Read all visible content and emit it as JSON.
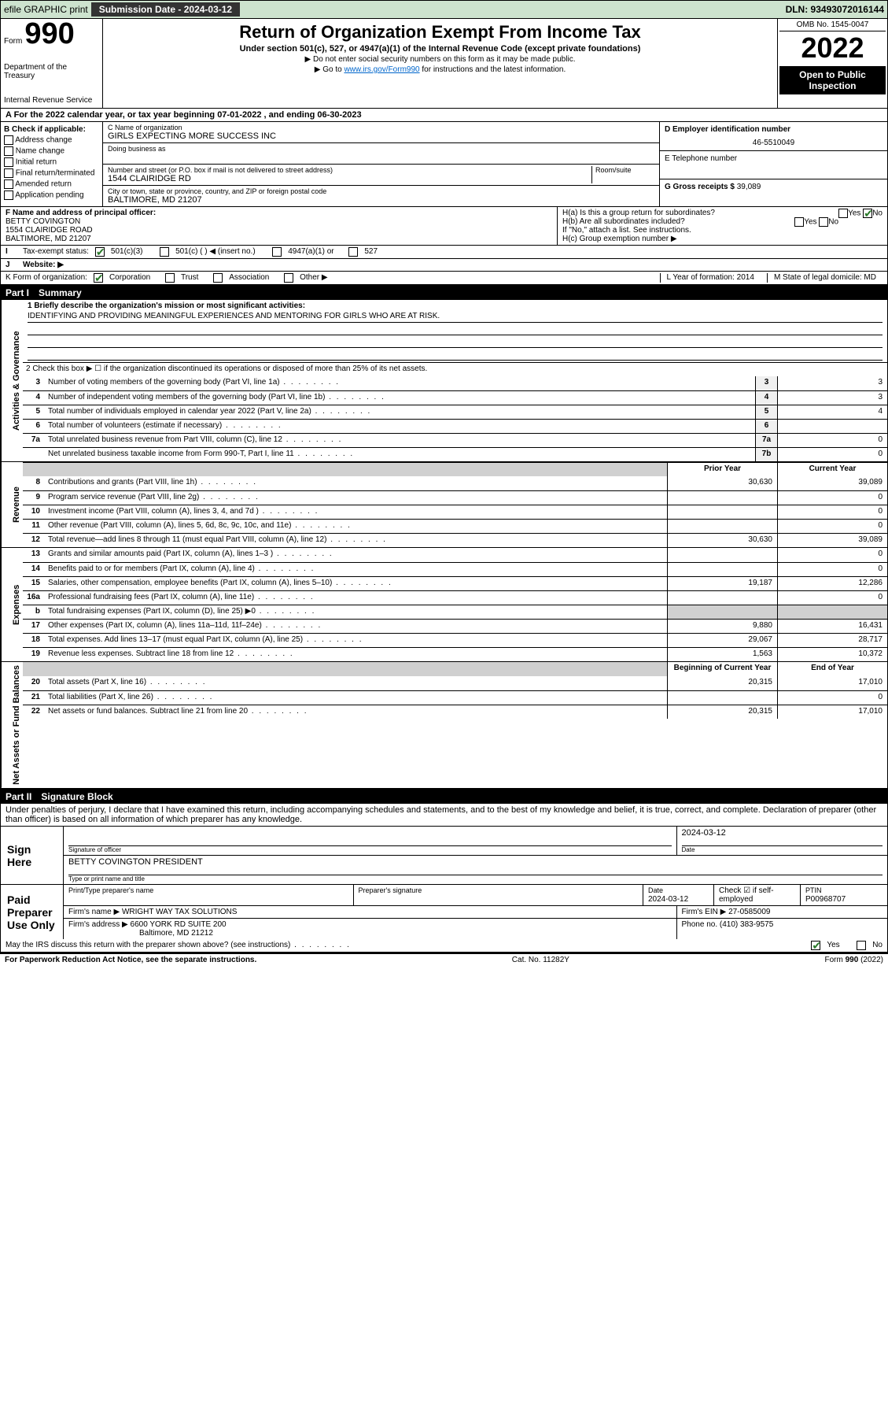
{
  "topbar": {
    "efile_label": "efile GRAPHIC print",
    "subm_label": "Submission Date - 2024-03-12",
    "dln": "DLN: 93493072016144"
  },
  "header": {
    "form_word": "Form",
    "form_no": "990",
    "dept": "Department of the Treasury",
    "irs": "Internal Revenue Service",
    "title": "Return of Organization Exempt From Income Tax",
    "sub": "Under section 501(c), 527, or 4947(a)(1) of the Internal Revenue Code (except private foundations)",
    "warn1": "▶ Do not enter social security numbers on this form as it may be made public.",
    "warn2_pre": "▶ Go to ",
    "warn2_link": "www.irs.gov/Form990",
    "warn2_post": " for instructions and the latest information.",
    "omb": "OMB No. 1545-0047",
    "year": "2022",
    "open1": "Open to Public",
    "open2": "Inspection"
  },
  "rowA": "A For the 2022 calendar year, or tax year beginning 07-01-2022   , and ending 06-30-2023",
  "colB": {
    "title": "B Check if applicable:",
    "items": [
      "Address change",
      "Name change",
      "Initial return",
      "Final return/terminated",
      "Amended return",
      "Application pending"
    ]
  },
  "colC": {
    "name_lab": "C Name of organization",
    "name_val": "GIRLS EXPECTING MORE SUCCESS INC",
    "dba_lab": "Doing business as",
    "addr_lab": "Number and street (or P.O. box if mail is not delivered to street address)",
    "room_lab": "Room/suite",
    "addr_val": "1544 CLAIRIDGE RD",
    "city_lab": "City or town, state or province, country, and ZIP or foreign postal code",
    "city_val": "BALTIMORE, MD  21207"
  },
  "colDE": {
    "d_lab": "D Employer identification number",
    "d_val": "46-5510049",
    "e_lab": "E Telephone number",
    "g_lab": "G Gross receipts $",
    "g_val": "39,089"
  },
  "rowF": {
    "f_lab": "F  Name and address of principal officer:",
    "f_val1": "BETTY COVINGTON",
    "f_val2": "1554 CLAIRIDGE ROAD",
    "f_val3": "BALTIMORE, MD  21207",
    "ha_lab": "H(a)  Is this a group return for subordinates?",
    "hb_lab": "H(b)  Are all subordinates included?",
    "h_attach": "If \"No,\" attach a list. See instructions.",
    "hc_lab": "H(c)  Group exemption number ▶",
    "yes": "Yes",
    "no": "No"
  },
  "rowI": {
    "lab": "Tax-exempt status:",
    "opt1": "501(c)(3)",
    "opt2": "501(c) (   ) ◀ (insert no.)",
    "opt3": "4947(a)(1) or",
    "opt4": "527"
  },
  "rowJ": {
    "lab": "J",
    "text": "Website: ▶"
  },
  "rowK": {
    "lab": "K Form of organization:",
    "opts": [
      "Corporation",
      "Trust",
      "Association",
      "Other ▶"
    ],
    "l_lab": "L Year of formation: 2014",
    "m_lab": "M State of legal domicile: MD"
  },
  "part1": {
    "no": "Part I",
    "title": "Summary"
  },
  "part2": {
    "no": "Part II",
    "title": "Signature Block"
  },
  "governance": {
    "q1_lab": "1  Briefly describe the organization's mission or most significant activities:",
    "q1_val": "IDENTIFYING AND PROVIDING MEANINGFUL EXPERIENCES AND MENTORING FOR GIRLS WHO ARE AT RISK.",
    "q2": "2  Check this box ▶ ☐  if the organization discontinued its operations or disposed of more than 25% of its net assets.",
    "rows": [
      {
        "n": "3",
        "d": "Number of voting members of the governing body (Part VI, line 1a)",
        "box": "3",
        "v": "3"
      },
      {
        "n": "4",
        "d": "Number of independent voting members of the governing body (Part VI, line 1b)",
        "box": "4",
        "v": "3"
      },
      {
        "n": "5",
        "d": "Total number of individuals employed in calendar year 2022 (Part V, line 2a)",
        "box": "5",
        "v": "4"
      },
      {
        "n": "6",
        "d": "Total number of volunteers (estimate if necessary)",
        "box": "6",
        "v": ""
      },
      {
        "n": "7a",
        "d": "Total unrelated business revenue from Part VIII, column (C), line 12",
        "box": "7a",
        "v": "0"
      },
      {
        "n": "",
        "d": "Net unrelated business taxable income from Form 990-T, Part I, line 11",
        "box": "7b",
        "v": "0"
      }
    ]
  },
  "twoColHeader": {
    "prior": "Prior Year",
    "current": "Current Year",
    "beg": "Beginning of Current Year",
    "end": "End of Year"
  },
  "revenue": [
    {
      "n": "8",
      "d": "Contributions and grants (Part VIII, line 1h)",
      "p": "30,630",
      "c": "39,089"
    },
    {
      "n": "9",
      "d": "Program service revenue (Part VIII, line 2g)",
      "p": "",
      "c": "0"
    },
    {
      "n": "10",
      "d": "Investment income (Part VIII, column (A), lines 3, 4, and 7d )",
      "p": "",
      "c": "0"
    },
    {
      "n": "11",
      "d": "Other revenue (Part VIII, column (A), lines 5, 6d, 8c, 9c, 10c, and 11e)",
      "p": "",
      "c": "0"
    },
    {
      "n": "12",
      "d": "Total revenue—add lines 8 through 11 (must equal Part VIII, column (A), line 12)",
      "p": "30,630",
      "c": "39,089"
    }
  ],
  "expenses": [
    {
      "n": "13",
      "d": "Grants and similar amounts paid (Part IX, column (A), lines 1–3 )",
      "p": "",
      "c": "0"
    },
    {
      "n": "14",
      "d": "Benefits paid to or for members (Part IX, column (A), line 4)",
      "p": "",
      "c": "0"
    },
    {
      "n": "15",
      "d": "Salaries, other compensation, employee benefits (Part IX, column (A), lines 5–10)",
      "p": "19,187",
      "c": "12,286"
    },
    {
      "n": "16a",
      "d": "Professional fundraising fees (Part IX, column (A), line 11e)",
      "p": "",
      "c": "0"
    },
    {
      "n": "b",
      "d": "Total fundraising expenses (Part IX, column (D), line 25) ▶0",
      "p": "SHADE",
      "c": "SHADE"
    },
    {
      "n": "17",
      "d": "Other expenses (Part IX, column (A), lines 11a–11d, 11f–24e)",
      "p": "9,880",
      "c": "16,431"
    },
    {
      "n": "18",
      "d": "Total expenses. Add lines 13–17 (must equal Part IX, column (A), line 25)",
      "p": "29,067",
      "c": "28,717"
    },
    {
      "n": "19",
      "d": "Revenue less expenses. Subtract line 18 from line 12",
      "p": "1,563",
      "c": "10,372"
    }
  ],
  "netassets": [
    {
      "n": "20",
      "d": "Total assets (Part X, line 16)",
      "p": "20,315",
      "c": "17,010"
    },
    {
      "n": "21",
      "d": "Total liabilities (Part X, line 26)",
      "p": "",
      "c": "0"
    },
    {
      "n": "22",
      "d": "Net assets or fund balances. Subtract line 21 from line 20",
      "p": "20,315",
      "c": "17,010"
    }
  ],
  "vert": {
    "gov": "Activities & Governance",
    "rev": "Revenue",
    "exp": "Expenses",
    "net": "Net Assets or Fund Balances"
  },
  "sig": {
    "decl": "Under penalties of perjury, I declare that I have examined this return, including accompanying schedules and statements, and to the best of my knowledge and belief, it is true, correct, and complete. Declaration of preparer (other than officer) is based on all information of which preparer has any knowledge.",
    "sign_here": "Sign Here",
    "sig_of_officer": "Signature of officer",
    "date_lab": "Date",
    "date_val": "2024-03-12",
    "name_title": "BETTY COVINGTON  PRESIDENT",
    "type_name": "Type or print name and title",
    "paid": "Paid Preparer Use Only",
    "prep_name_lab": "Print/Type preparer's name",
    "prep_sig_lab": "Preparer's signature",
    "prep_date_lab": "Date",
    "prep_date_val": "2024-03-12",
    "check_if": "Check ☑ if self-employed",
    "ptin_lab": "PTIN",
    "ptin_val": "P00968707",
    "firm_name_lab": "Firm's name    ▶",
    "firm_name_val": "WRIGHT WAY TAX SOLUTIONS",
    "firm_ein_lab": "Firm's EIN ▶",
    "firm_ein_val": "27-0585009",
    "firm_addr_lab": "Firm's address ▶",
    "firm_addr_val1": "6600 YORK RD SUITE 200",
    "firm_addr_val2": "Baltimore, MD  21212",
    "phone_lab": "Phone no.",
    "phone_val": "(410) 383-9575",
    "may_irs": "May the IRS discuss this return with the preparer shown above? (see instructions)",
    "yes": "Yes",
    "no": "No"
  },
  "footer": {
    "left": "For Paperwork Reduction Act Notice, see the separate instructions.",
    "mid": "Cat. No. 11282Y",
    "right": "Form 990 (2022)"
  }
}
